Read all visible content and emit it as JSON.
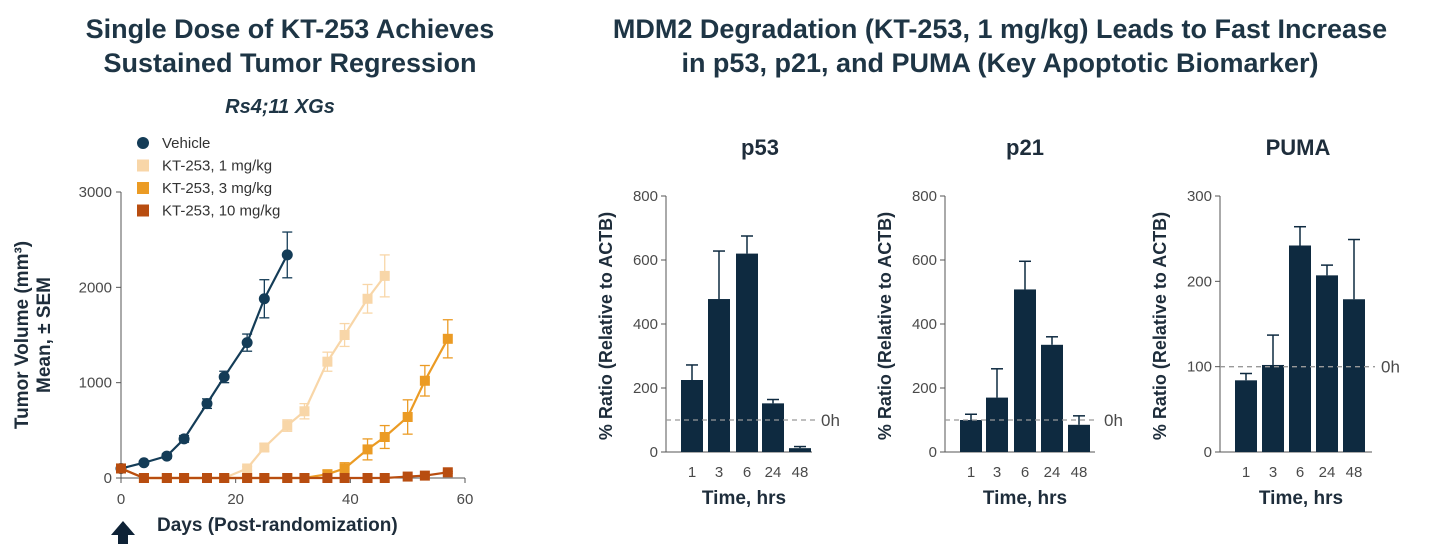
{
  "titles": {
    "left_line1": "Single Dose of KT-253 Achieves",
    "left_line2": "Sustained Tumor Regression",
    "right_line1": "MDM2 Degradation (KT-253, 1 mg/kg) Leads to Fast Increase",
    "right_line2": "in p53, p21, and PUMA (Key Apoptotic Biomarker)"
  },
  "chart_data": [
    {
      "type": "line",
      "subtitle": "Rs4;11 XGs",
      "xlabel": "Days (Post-randomization)",
      "ylabel_line1": "Tumor Volume (mm³)",
      "ylabel_line2": "Mean, ± SEM",
      "xlim": [
        0,
        60
      ],
      "ylim": [
        0,
        3000
      ],
      "xticks": [
        0,
        20,
        40,
        60
      ],
      "yticks": [
        0,
        1000,
        2000,
        3000
      ],
      "legend_position": "top-left",
      "series": [
        {
          "name": "Vehicle",
          "marker": "circle",
          "color": "#143c57",
          "x": [
            0,
            4,
            8,
            11,
            15,
            18,
            22,
            25,
            29
          ],
          "y": [
            100,
            160,
            230,
            410,
            780,
            1060,
            1420,
            1880,
            2340
          ],
          "err": [
            0,
            20,
            25,
            35,
            50,
            60,
            90,
            200,
            240
          ]
        },
        {
          "name": "KT-253, 1 mg/kg",
          "marker": "square",
          "color": "#f8d6a8",
          "x": [
            0,
            4,
            8,
            11,
            15,
            18,
            22,
            25,
            29,
            32,
            36,
            39,
            43,
            46
          ],
          "y": [
            100,
            0,
            0,
            0,
            0,
            0,
            100,
            320,
            550,
            700,
            1220,
            1500,
            1880,
            2120
          ],
          "err": [
            0,
            0,
            0,
            0,
            0,
            0,
            20,
            40,
            60,
            80,
            100,
            120,
            150,
            220
          ]
        },
        {
          "name": "KT-253, 3 mg/kg",
          "marker": "square",
          "color": "#eb9b24",
          "x": [
            0,
            4,
            8,
            11,
            15,
            18,
            22,
            25,
            29,
            32,
            36,
            39,
            43,
            46,
            50,
            53,
            57
          ],
          "y": [
            100,
            0,
            0,
            0,
            0,
            0,
            0,
            0,
            0,
            0,
            40,
            100,
            300,
            430,
            640,
            1020,
            1460
          ],
          "err": [
            0,
            0,
            0,
            0,
            0,
            0,
            0,
            0,
            0,
            0,
            40,
            60,
            110,
            120,
            180,
            160,
            200
          ]
        },
        {
          "name": "KT-253, 10 mg/kg",
          "marker": "square",
          "color": "#b84d10",
          "x": [
            0,
            4,
            8,
            11,
            15,
            18,
            22,
            25,
            29,
            32,
            36,
            39,
            43,
            46,
            50,
            53,
            57
          ],
          "y": [
            100,
            0,
            0,
            0,
            0,
            0,
            0,
            0,
            0,
            0,
            0,
            0,
            0,
            0,
            15,
            25,
            60
          ],
          "err": [
            0,
            0,
            0,
            0,
            0,
            0,
            0,
            0,
            0,
            0,
            0,
            0,
            0,
            0,
            5,
            5,
            10
          ]
        }
      ]
    },
    {
      "type": "bar",
      "title": "p53",
      "xlabel": "Time, hrs",
      "ylabel": "% Ratio (Relative to ACTB)",
      "categories": [
        "1",
        "3",
        "6",
        "24",
        "48"
      ],
      "values": [
        225,
        478,
        620,
        152,
        12
      ],
      "err": [
        47,
        150,
        55,
        12,
        5
      ],
      "ylim": [
        0,
        800
      ],
      "yticks": [
        0,
        200,
        400,
        600,
        800
      ],
      "reference": {
        "value": 100,
        "label": "0h"
      }
    },
    {
      "type": "bar",
      "title": "p21",
      "xlabel": "Time, hrs",
      "ylabel": "% Ratio (Relative to ACTB)",
      "categories": [
        "1",
        "3",
        "6",
        "24",
        "48"
      ],
      "values": [
        100,
        170,
        508,
        335,
        85
      ],
      "err": [
        18,
        90,
        88,
        25,
        28
      ],
      "ylim": [
        0,
        800
      ],
      "yticks": [
        0,
        200,
        400,
        600,
        800
      ],
      "reference": {
        "value": 100,
        "label": "0h"
      }
    },
    {
      "type": "bar",
      "title": "PUMA",
      "xlabel": "Time, hrs",
      "ylabel": "% Ratio (Relative to ACTB)",
      "categories": [
        "1",
        "3",
        "6",
        "24",
        "48"
      ],
      "values": [
        84,
        102,
        242,
        207,
        179
      ],
      "err": [
        8,
        35,
        22,
        12,
        70
      ],
      "ylim": [
        0,
        300
      ],
      "yticks": [
        0,
        100,
        200,
        300
      ],
      "reference": {
        "value": 100,
        "label": "0h"
      }
    }
  ],
  "colors": {
    "bar": "#0e2a40",
    "text": "#1e2d3b",
    "reference": "#999999"
  }
}
